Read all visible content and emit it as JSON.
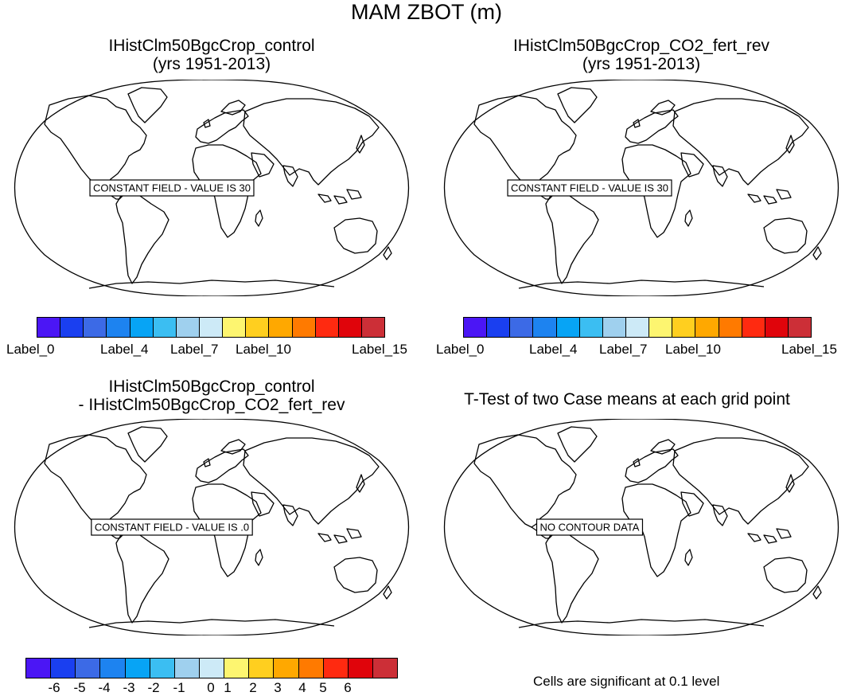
{
  "main_title": "MAM ZBOT (m)",
  "panels": [
    {
      "title_line1": "IHistClm50BgcCrop_control",
      "title_line2": "(yrs 1951-2013)",
      "box_text": "CONSTANT FIELD - VALUE IS 30"
    },
    {
      "title_line1": "IHistClm50BgcCrop_CO2_fert_rev",
      "title_line2": "(yrs 1951-2013)",
      "box_text": "CONSTANT FIELD - VALUE IS 30"
    },
    {
      "title_line1": "IHistClm50BgcCrop_control",
      "title_line2": "- IHistClm50BgcCrop_CO2_fert_rev",
      "box_text": "CONSTANT FIELD - VALUE IS .0"
    },
    {
      "title_line1": "T-Test of two Case means at each grid point",
      "title_line2": "",
      "box_text": "NO CONTOUR DATA"
    }
  ],
  "colorbar_colors": [
    "#4b16f5",
    "#1a3ff0",
    "#3c6ae6",
    "#1d83f0",
    "#07a4f5",
    "#3bbef2",
    "#9fd0ee",
    "#cdeaf7",
    "#fdf570",
    "#ffcf1f",
    "#ffa800",
    "#ff7a00",
    "#ff2a10",
    "#e0040b",
    "#cc2f37"
  ],
  "colorbar_top": {
    "labels": [
      "Label_0",
      "Label_4",
      "Label_7",
      "Label_10",
      "Label_15"
    ]
  },
  "colorbar_bottom": {
    "labels": [
      "-6",
      "-5",
      "-4",
      "-3",
      "-2",
      "-1",
      "0",
      "1",
      "2",
      "3",
      "4",
      "5",
      "6"
    ]
  },
  "footnote": "Cells are significant at 0.1 level"
}
